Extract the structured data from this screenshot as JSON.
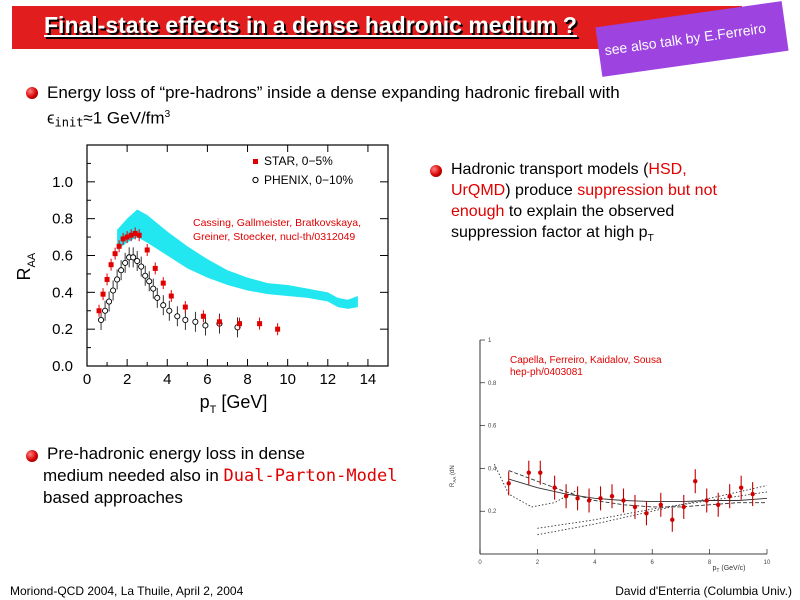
{
  "slide": {
    "title": "Final-state effects in a dense hadronic medium ?",
    "sticker": "see also talk by E.Ferreiro",
    "bullet1": {
      "line1": "Energy loss of “pre-hadrons” inside a dense expanding hadronic fireball with",
      "eps": "ϵ",
      "sub": "init",
      "rest": "≈1 GeV/fm",
      "sup": "3"
    },
    "bullet2": {
      "t1": "Hadronic transport models (",
      "hsd": "HSD,",
      "urqmd": "UrQMD",
      "t2": ") produce ",
      "supp": "suppression but not",
      "enough": "enough",
      "t3": " to explain the observed",
      "t4": "suppression factor at high p",
      "t4sub": "T"
    },
    "bullet3": {
      "line1": "Pre-hadronic energy loss in dense",
      "line2a": "medium needed also in ",
      "dpm": "Dual-Parton-Model",
      "line3": "based approaches"
    },
    "footer_left": "Moriond-QCD 2004, La Thuile, April 2, 2004",
    "footer_right": "David d'Enterria (Columbia Univ.)"
  },
  "colors": {
    "accent": "#e11d1d",
    "sticker": "#9c43e0",
    "band": "#22e6f0",
    "marker_red": "#e00000"
  },
  "chart_data": [
    {
      "type": "scatter",
      "xlabel": "p",
      "xlabel_sub": "T",
      "xlabel_unit": "[GeV]",
      "ylabel": "R",
      "ylabel_sub": "AA",
      "xlim": [
        0,
        15
      ],
      "ylim": [
        0.0,
        1.2
      ],
      "xticks": [
        0,
        2,
        4,
        6,
        8,
        10,
        12,
        14
      ],
      "yticks": [
        0.0,
        0.2,
        0.4,
        0.6,
        0.8,
        1.0
      ],
      "ytick_labels": [
        "0.0",
        "0.2",
        "0.4",
        "0.6",
        "0.8",
        "1.0"
      ],
      "annotation": [
        "Cassing, Gallmeister, Bratkovskaya,",
        "Greiner, Stoecker, nucl-th/0312049"
      ],
      "legend_position": "top-right",
      "series": [
        {
          "name": "STAR, 0−5%",
          "marker": "red-square",
          "x": [
            0.6,
            0.8,
            1.0,
            1.2,
            1.4,
            1.6,
            1.8,
            2.0,
            2.2,
            2.4,
            2.6,
            3.0,
            3.4,
            3.8,
            4.2,
            4.9,
            5.8,
            6.6,
            7.6,
            8.6,
            9.5
          ],
          "y": [
            0.3,
            0.39,
            0.47,
            0.55,
            0.61,
            0.65,
            0.69,
            0.7,
            0.71,
            0.72,
            0.71,
            0.63,
            0.53,
            0.45,
            0.38,
            0.32,
            0.27,
            0.24,
            0.23,
            0.23,
            0.2
          ]
        },
        {
          "name": "PHENIX, 0−10%",
          "marker": "open-circle",
          "x": [
            0.7,
            0.9,
            1.1,
            1.3,
            1.5,
            1.7,
            1.9,
            2.1,
            2.3,
            2.5,
            2.7,
            2.9,
            3.1,
            3.3,
            3.5,
            3.8,
            4.1,
            4.5,
            4.9,
            5.4,
            5.9,
            6.6,
            7.5
          ],
          "y": [
            0.25,
            0.3,
            0.35,
            0.41,
            0.47,
            0.52,
            0.56,
            0.59,
            0.59,
            0.57,
            0.54,
            0.49,
            0.46,
            0.42,
            0.37,
            0.33,
            0.3,
            0.27,
            0.25,
            0.24,
            0.22,
            0.23,
            0.21
          ]
        },
        {
          "name": "model band",
          "type": "area",
          "x": [
            1.5,
            2.0,
            2.5,
            3.0,
            4.0,
            5.0,
            6.0,
            7.0,
            8.0,
            9.0,
            10.0,
            11.0,
            12.0,
            12.5,
            13.0,
            13.5
          ],
          "y_low": [
            0.63,
            0.67,
            0.7,
            0.67,
            0.6,
            0.53,
            0.48,
            0.44,
            0.41,
            0.39,
            0.38,
            0.37,
            0.35,
            0.32,
            0.31,
            0.32
          ],
          "y_high": [
            0.74,
            0.8,
            0.85,
            0.82,
            0.73,
            0.65,
            0.58,
            0.52,
            0.48,
            0.45,
            0.44,
            0.42,
            0.4,
            0.37,
            0.36,
            0.38
          ]
        }
      ]
    },
    {
      "type": "scatter",
      "xlabel": "p",
      "xlabel_sub": "T",
      "xlabel_unit": "(GeV/c)",
      "ylabel": "R",
      "ylabel_sub": "AA",
      "ylabel_rest": "(dN",
      "xlim": [
        0,
        10
      ],
      "ylim": [
        0,
        1
      ],
      "xticks": [
        0,
        2,
        4,
        6,
        8,
        10
      ],
      "yticks": [
        0.2,
        0.4,
        0.6,
        0.8,
        1
      ],
      "ytick_labels": [
        "0.2",
        "0.4",
        "0.6",
        "0.8",
        "1"
      ],
      "annotation": [
        "Capella, Ferreiro, Kaidalov, Sousa",
        "hep-ph/0403081"
      ],
      "series": [
        {
          "name": "data",
          "marker": "red-circle",
          "x": [
            1.0,
            1.7,
            2.1,
            2.6,
            3.0,
            3.4,
            3.8,
            4.2,
            4.6,
            5.0,
            5.4,
            5.8,
            6.3,
            6.7,
            7.1,
            7.5,
            7.9,
            8.3,
            8.7,
            9.1,
            9.5
          ],
          "y": [
            0.33,
            0.38,
            0.38,
            0.31,
            0.27,
            0.26,
            0.25,
            0.26,
            0.27,
            0.25,
            0.22,
            0.19,
            0.23,
            0.16,
            0.22,
            0.34,
            0.25,
            0.23,
            0.27,
            0.31,
            0.28
          ]
        },
        {
          "name": "curve-solid",
          "type": "line",
          "x": [
            1,
            2,
            3,
            4,
            5,
            6,
            7,
            8,
            9,
            10
          ],
          "y": [
            0.35,
            0.31,
            0.28,
            0.26,
            0.25,
            0.245,
            0.245,
            0.25,
            0.25,
            0.26
          ]
        },
        {
          "name": "curve-dashed",
          "type": "line",
          "x": [
            1,
            2,
            3,
            4,
            5,
            6,
            7,
            8,
            9,
            10
          ],
          "y": [
            0.39,
            0.34,
            0.29,
            0.25,
            0.23,
            0.22,
            0.22,
            0.23,
            0.24,
            0.24
          ]
        },
        {
          "name": "curve-dotted-rising-1",
          "type": "line",
          "x": [
            2,
            4,
            6,
            8,
            10
          ],
          "y": [
            0.09,
            0.14,
            0.2,
            0.26,
            0.32
          ]
        },
        {
          "name": "curve-dotted-rising-2",
          "type": "line",
          "x": [
            2,
            4,
            6,
            8,
            10
          ],
          "y": [
            0.12,
            0.16,
            0.21,
            0.25,
            0.29
          ]
        },
        {
          "name": "curve-dotted-envelope",
          "type": "line",
          "x": [
            0.5,
            1.0,
            1.8,
            2.6,
            3.4
          ],
          "y": [
            0.42,
            0.28,
            0.22,
            0.24,
            0.3
          ]
        }
      ]
    }
  ]
}
